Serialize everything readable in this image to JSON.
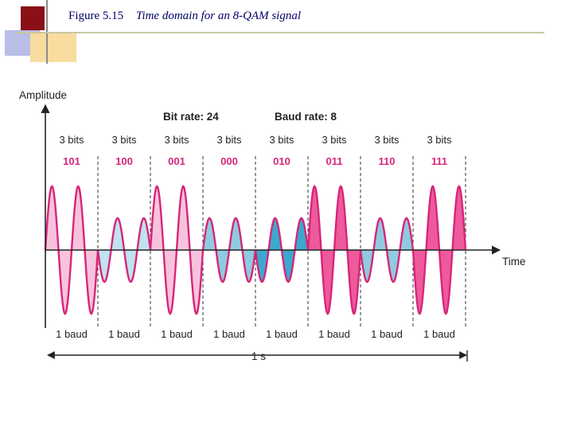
{
  "header": {
    "figure_number": "Figure 5.15",
    "caption": "Time domain for an 8-QAM signal"
  },
  "diagram": {
    "y_axis_label": "Amplitude",
    "x_axis_label": "Time",
    "bit_rate_label": "Bit rate: 24",
    "baud_rate_label": "Baud rate: 8",
    "duration_label": "1 s",
    "segments": [
      {
        "bits_label": "3 bits",
        "code": "101",
        "baud_label": "1 baud",
        "amplitude": "large",
        "phase": "0",
        "fill": "#f7c3dc"
      },
      {
        "bits_label": "3 bits",
        "code": "100",
        "baud_label": "1 baud",
        "amplitude": "small",
        "phase": "180",
        "fill": "#bfe3ef"
      },
      {
        "bits_label": "3 bits",
        "code": "001",
        "baud_label": "1 baud",
        "amplitude": "large",
        "phase": "0",
        "fill": "#f7c3dc"
      },
      {
        "bits_label": "3 bits",
        "code": "000",
        "baud_label": "1 baud",
        "amplitude": "small",
        "phase": "0",
        "fill": "#8fcbe0"
      },
      {
        "bits_label": "3 bits",
        "code": "010",
        "baud_label": "1 baud",
        "amplitude": "small",
        "phase": "180",
        "fill": "#3ba9cf"
      },
      {
        "bits_label": "3 bits",
        "code": "011",
        "baud_label": "1 baud",
        "amplitude": "large",
        "phase": "0",
        "fill": "#ee5a9c"
      },
      {
        "bits_label": "3 bits",
        "code": "110",
        "baud_label": "1 baud",
        "amplitude": "small",
        "phase": "180",
        "fill": "#8fcbe0"
      },
      {
        "bits_label": "3 bits",
        "code": "111",
        "baud_label": "1 baud",
        "amplitude": "large",
        "phase": "180",
        "fill": "#ee5a9c"
      }
    ],
    "colors": {
      "wave": "#d6267a",
      "code_text": "#d6267a",
      "axis": "#222222",
      "title_text": "#000066"
    }
  }
}
